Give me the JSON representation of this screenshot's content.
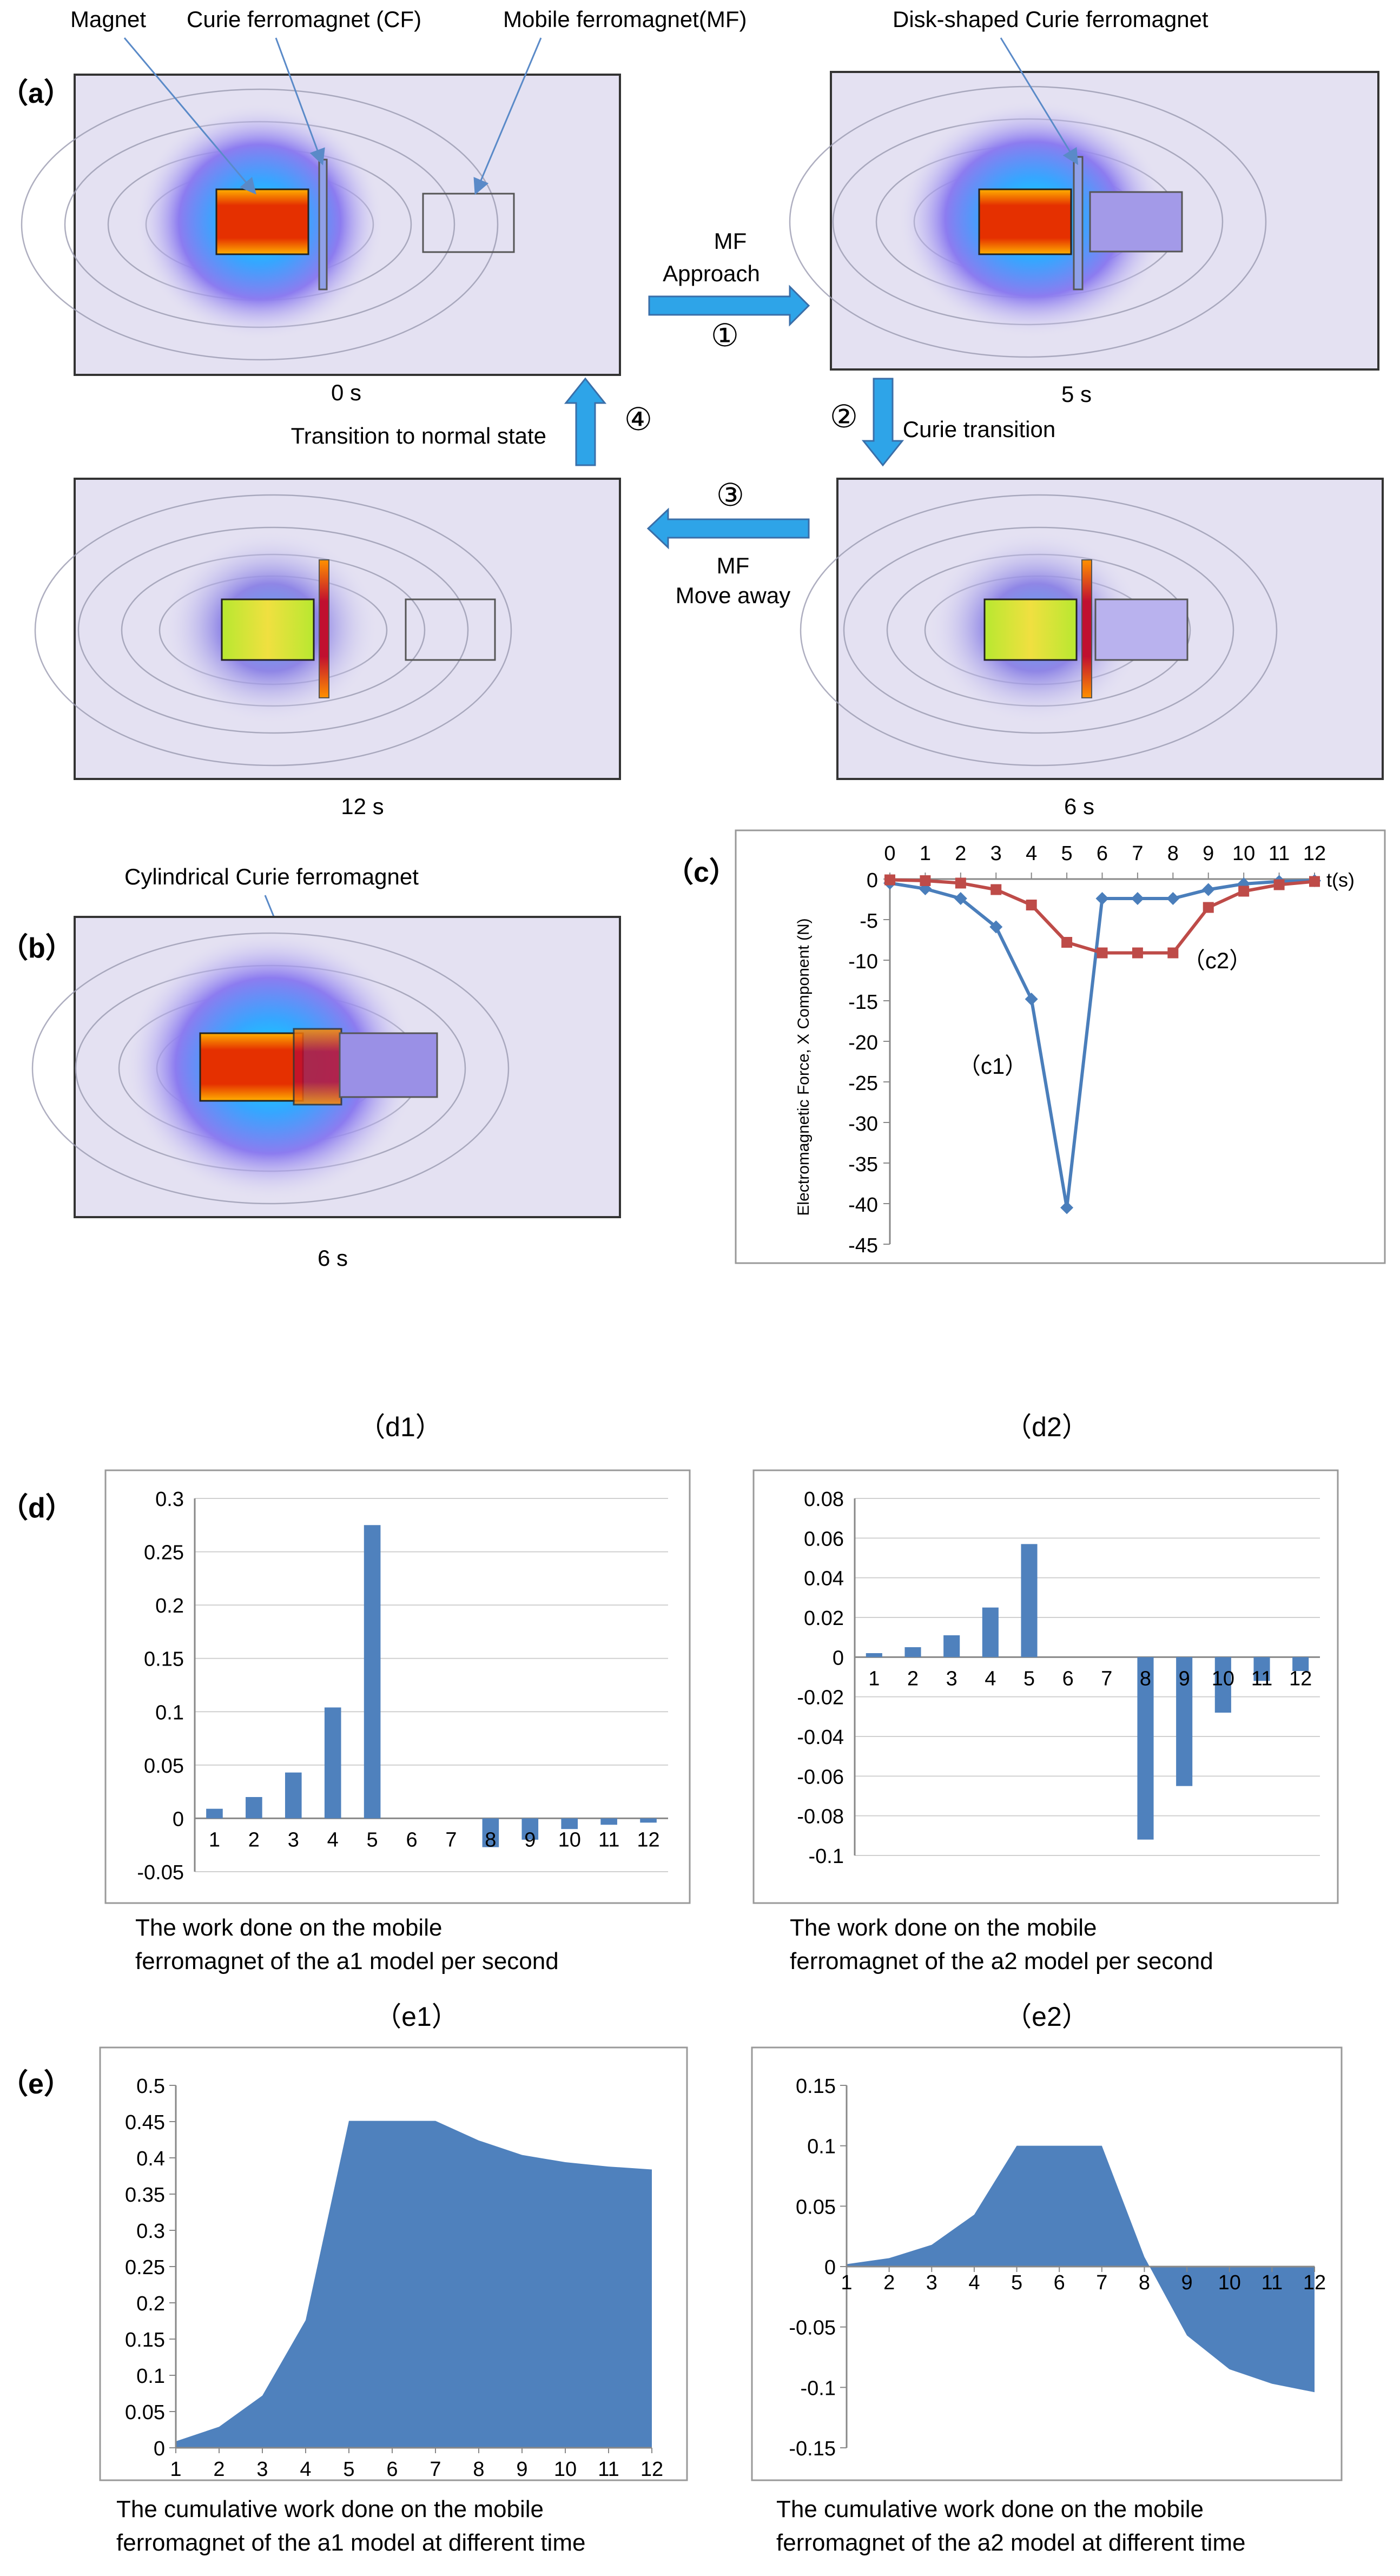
{
  "panel_letters": {
    "a": "（a）",
    "b": "（b）",
    "c": "（c）",
    "d": "（d）",
    "e": "（e）"
  },
  "sim_labels": {
    "magnet": "Magnet",
    "curie_ferromagnet": "Curie ferromagnet (CF)",
    "mobile_ferromagnet": "Mobile ferromagnet(MF)",
    "disk_shaped": "Disk-shaped  Curie  ferromagnet",
    "cylindrical": "Cylindrical Curie ferromagnet"
  },
  "sim_times": {
    "t0": "0 s",
    "t5": "5 s",
    "t12": "12 s",
    "t6": "6 s",
    "t6b": "6 s"
  },
  "flow": {
    "step1_line1": "MF",
    "step1_line2": "Approach",
    "step1_num": "①",
    "step2_num": "②",
    "step2_label": "Curie transition",
    "step3_num": "③",
    "step3_line1": "MF",
    "step3_line2": "Move away",
    "step4_num": "④",
    "step4_label": "Transition to normal state"
  },
  "colors": {
    "series_c1": "#4a7ebb",
    "series_c2": "#be4b48",
    "bar": "#4f81bd",
    "grid": "#d0d0d0",
    "axis": "#888888",
    "sim_bg": "#e4e1f2"
  },
  "chart_data": [
    {
      "id": "c",
      "type": "line",
      "ylabel": "Electromagnetic Force, X Component (N)",
      "xlabel": "t(s)",
      "x": [
        0,
        1,
        2,
        3,
        4,
        5,
        6,
        7,
        8,
        9,
        10,
        11,
        12
      ],
      "ylim": [
        -45,
        0
      ],
      "yticks": [
        0,
        -5,
        -10,
        -15,
        -20,
        -25,
        -30,
        -35,
        -40,
        -45
      ],
      "x_axis_position": "top",
      "series": [
        {
          "name": "（c1）",
          "values": [
            -0.5,
            -1.2,
            -2.4,
            -5.9,
            -14.8,
            -40.5,
            -2.4,
            -2.4,
            -2.4,
            -1.3,
            -0.6,
            -0.3,
            -0.2
          ]
        },
        {
          "name": "（c2）",
          "values": [
            -0.1,
            -0.2,
            -0.5,
            -1.3,
            -3.2,
            -7.8,
            -9.1,
            -9.1,
            -9.1,
            -3.5,
            -1.5,
            -0.7,
            -0.3
          ]
        }
      ]
    },
    {
      "id": "d1",
      "type": "bar",
      "title": "（d1）",
      "caption": [
        "The work done on the mobile",
        "ferromagnet of the a1 model per second"
      ],
      "categories": [
        "1",
        "2",
        "3",
        "4",
        "5",
        "6",
        "7",
        "8",
        "9",
        "10",
        "11",
        "12"
      ],
      "values": [
        0.009,
        0.02,
        0.043,
        0.104,
        0.275,
        0,
        0,
        -0.027,
        -0.02,
        -0.01,
        -0.006,
        -0.004
      ],
      "ylim": [
        -0.05,
        0.3
      ],
      "yticks": [
        -0.05,
        0,
        0.05,
        0.1,
        0.15,
        0.2,
        0.25,
        0.3
      ],
      "ytick_labels": [
        "-0.05",
        "0",
        "0.05",
        "0.1",
        "0.15",
        "0.2",
        "0.25",
        "0.3"
      ],
      "grid": true
    },
    {
      "id": "d2",
      "type": "bar",
      "title": "（d2）",
      "caption": [
        "The work done on the mobile",
        "ferromagnet of the a2 model per second"
      ],
      "categories": [
        "1",
        "2",
        "3",
        "4",
        "5",
        "6",
        "7",
        "8",
        "9",
        "10",
        "11",
        "12"
      ],
      "values": [
        0.002,
        0.005,
        0.011,
        0.025,
        0.057,
        0,
        0,
        -0.092,
        -0.065,
        -0.028,
        -0.012,
        -0.007
      ],
      "ylim": [
        -0.1,
        0.08
      ],
      "yticks": [
        -0.1,
        -0.08,
        -0.06,
        -0.04,
        -0.02,
        0,
        0.02,
        0.04,
        0.06,
        0.08
      ],
      "ytick_labels": [
        "-0.1",
        "-0.08",
        "-0.06",
        "-0.04",
        "-0.02",
        "0",
        "0.02",
        "0.04",
        "0.06",
        "0.08"
      ],
      "grid": true
    },
    {
      "id": "e1",
      "type": "area",
      "title": "（e1）",
      "caption": [
        "The cumulative work done on the mobile",
        "ferromagnet of the a1 model at different time"
      ],
      "categories": [
        "1",
        "2",
        "3",
        "4",
        "5",
        "6",
        "7",
        "8",
        "9",
        "10",
        "11",
        "12"
      ],
      "values": [
        0.009,
        0.029,
        0.072,
        0.176,
        0.451,
        0.451,
        0.451,
        0.424,
        0.404,
        0.394,
        0.388,
        0.384
      ],
      "ylim": [
        0,
        0.5
      ],
      "yticks": [
        0,
        0.05,
        0.1,
        0.15,
        0.2,
        0.25,
        0.3,
        0.35,
        0.4,
        0.45,
        0.5
      ],
      "ytick_labels": [
        "0",
        "0.05",
        "0.1",
        "0.15",
        "0.2",
        "0.25",
        "0.3",
        "0.35",
        "0.4",
        "0.45",
        "0.5"
      ],
      "grid": false
    },
    {
      "id": "e2",
      "type": "area",
      "title": "（e2）",
      "caption": [
        "The cumulative work done on the mobile",
        "ferromagnet of the a2 model at different time"
      ],
      "categories": [
        "1",
        "2",
        "3",
        "4",
        "5",
        "6",
        "7",
        "8",
        "9",
        "10",
        "11",
        "12"
      ],
      "values": [
        0.002,
        0.007,
        0.018,
        0.043,
        0.1,
        0.1,
        0.1,
        0.008,
        -0.057,
        -0.085,
        -0.097,
        -0.104
      ],
      "ylim": [
        -0.15,
        0.15
      ],
      "yticks": [
        -0.15,
        -0.1,
        -0.05,
        0,
        0.05,
        0.1,
        0.15
      ],
      "ytick_labels": [
        "-0.15",
        "-0.1",
        "-0.05",
        "0",
        "0.05",
        "0.1",
        "0.15"
      ],
      "grid": false
    }
  ]
}
